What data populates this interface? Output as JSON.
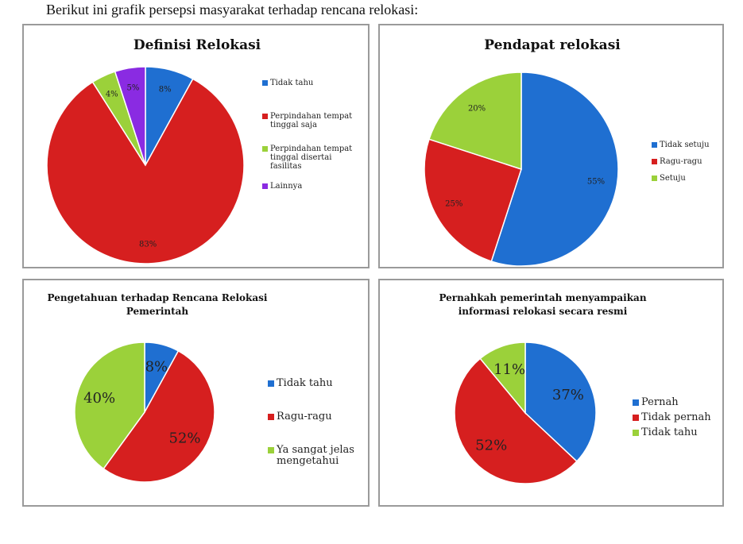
{
  "caption": "Berikut ini grafik persepsi masyarakat terhadap rencana relokasi:",
  "colors": {
    "blue": "#1f6fd1",
    "red": "#d61f1f",
    "green": "#9bd13a",
    "purple": "#8a2be2"
  },
  "chart_data": [
    {
      "type": "pie",
      "title": [
        "Definisi  Relokasi"
      ],
      "categories": [
        "Tidak tahu",
        "Perpindahan tempat tinggal saja",
        "Perpindahan tempat tinggal disertai fasilitas",
        "Lainnya"
      ],
      "legend_lines": [
        [
          "Tidak tahu"
        ],
        [
          "Perpindahan tempat",
          "tinggal saja"
        ],
        [
          "Perpindahan tempat",
          "tinggal disertai",
          "fasilitas"
        ],
        [
          "Lainnya"
        ]
      ],
      "values": [
        8,
        83,
        4,
        5
      ],
      "labels": [
        "8%",
        "83%",
        "4%",
        "5%"
      ],
      "colors": [
        "#1f6fd1",
        "#d61f1f",
        "#9bd13a",
        "#8a2be2"
      ]
    },
    {
      "type": "pie",
      "title": [
        "Pendapat relokasi"
      ],
      "categories": [
        "Tidak setuju",
        "Ragu-ragu",
        "Setuju"
      ],
      "legend_lines": [
        [
          "Tidak setuju"
        ],
        [
          "Ragu-ragu"
        ],
        [
          "Setuju"
        ]
      ],
      "values": [
        55,
        25,
        20
      ],
      "labels": [
        "55%",
        "25%",
        "20%"
      ],
      "colors": [
        "#1f6fd1",
        "#d61f1f",
        "#9bd13a"
      ]
    },
    {
      "type": "pie",
      "title": [
        "Pengetahuan  terhadap  Rencana  Relokasi",
        "Pemerintah"
      ],
      "categories": [
        "Tidak tahu",
        "Ragu-ragu",
        "Ya sangat jelas mengetahui"
      ],
      "legend_lines": [
        [
          "Tidak tahu"
        ],
        [
          "Ragu-ragu"
        ],
        [
          "Ya sangat jelas",
          "mengetahui"
        ]
      ],
      "values": [
        8,
        52,
        40
      ],
      "labels": [
        "8%",
        "52%",
        "40%"
      ],
      "colors": [
        "#1f6fd1",
        "#d61f1f",
        "#9bd13a"
      ]
    },
    {
      "type": "pie",
      "title": [
        "Pernahkah  pemerintah  menyampaikan",
        "informasi  relokasi secara resmi"
      ],
      "categories": [
        "Pernah",
        "Tidak pernah",
        "Tidak tahu"
      ],
      "legend_lines": [
        [
          "Pernah"
        ],
        [
          "Tidak pernah"
        ],
        [
          "Tidak tahu"
        ]
      ],
      "values": [
        37,
        52,
        11
      ],
      "labels": [
        "37%",
        "52%",
        "11%"
      ],
      "colors": [
        "#1f6fd1",
        "#d61f1f",
        "#9bd13a"
      ]
    }
  ]
}
